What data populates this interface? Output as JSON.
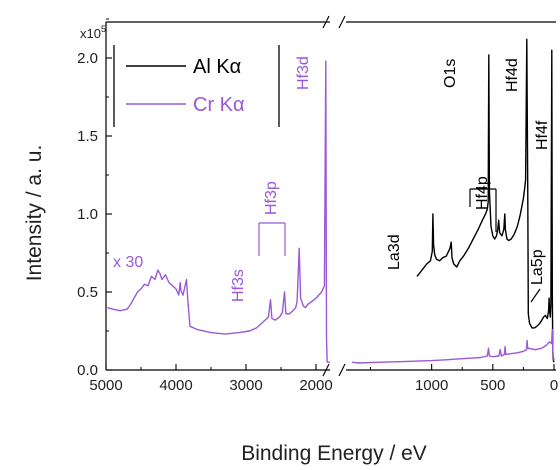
{
  "chart_data": {
    "type": "line",
    "xlabel": "Binding Energy / eV",
    "ylabel": "Intensity / a. u.",
    "y_multiplier": "x10",
    "y_multiplier_exp": "5",
    "ylim": [
      0,
      2.35
    ],
    "y_ticks": [
      {
        "v": 0.0,
        "label": "0.0"
      },
      {
        "v": 0.5,
        "label": "0.5"
      },
      {
        "v": 1.0,
        "label": "1.0"
      },
      {
        "v": 1.5,
        "label": "1.5"
      },
      {
        "v": 2.0,
        "label": "2.0"
      }
    ],
    "x_axis_broken": true,
    "x_segments": [
      {
        "range": [
          5000,
          1800
        ],
        "ticks": [
          {
            "v": 5000,
            "label": "5000"
          },
          {
            "v": 4000,
            "label": "4000"
          },
          {
            "v": 3000,
            "label": "3000"
          },
          {
            "v": 2000,
            "label": "2000"
          }
        ]
      },
      {
        "range": [
          1700,
          0
        ],
        "ticks": [
          {
            "v": 1000,
            "label": "1000"
          },
          {
            "v": 500,
            "label": "500"
          },
          {
            "v": 0,
            "label": "0"
          }
        ]
      }
    ],
    "legend_position": "top-left",
    "series": [
      {
        "name": "Al Kα",
        "color": "#000000",
        "segment": 1,
        "points": [
          [
            1120,
            0.6
          ],
          [
            1080,
            0.64
          ],
          [
            1040,
            0.68
          ],
          [
            1010,
            0.7
          ],
          [
            995,
            0.76
          ],
          [
            990,
            1.0
          ],
          [
            984,
            0.8
          ],
          [
            975,
            0.74
          ],
          [
            960,
            0.71
          ],
          [
            935,
            0.7
          ],
          [
            910,
            0.72
          ],
          [
            880,
            0.73
          ],
          [
            850,
            0.78
          ],
          [
            840,
            0.82
          ],
          [
            834,
            0.72
          ],
          [
            820,
            0.68
          ],
          [
            795,
            0.66
          ],
          [
            770,
            0.7
          ],
          [
            740,
            0.73
          ],
          [
            700,
            0.78
          ],
          [
            660,
            0.84
          ],
          [
            620,
            0.9
          ],
          [
            585,
            0.96
          ],
          [
            560,
            1.0
          ],
          [
            545,
            1.03
          ],
          [
            538,
            1.08
          ],
          [
            533,
            2.02
          ],
          [
            528,
            1.15
          ],
          [
            515,
            0.92
          ],
          [
            500,
            0.86
          ],
          [
            485,
            0.84
          ],
          [
            470,
            0.86
          ],
          [
            460,
            0.9
          ],
          [
            452,
            0.96
          ],
          [
            445,
            0.88
          ],
          [
            425,
            0.86
          ],
          [
            410,
            0.9
          ],
          [
            402,
            1.0
          ],
          [
            397,
            0.9
          ],
          [
            385,
            0.84
          ],
          [
            370,
            0.83
          ],
          [
            350,
            0.84
          ],
          [
            325,
            0.87
          ],
          [
            300,
            0.92
          ],
          [
            280,
            0.98
          ],
          [
            265,
            1.04
          ],
          [
            250,
            1.1
          ],
          [
            240,
            1.16
          ],
          [
            232,
            1.22
          ],
          [
            222,
            2.12
          ],
          [
            214,
            1.1
          ],
          [
            210,
            0.36
          ],
          [
            200,
            0.3
          ],
          [
            180,
            0.27
          ],
          [
            160,
            0.27
          ],
          [
            140,
            0.28
          ],
          [
            115,
            0.3
          ],
          [
            100,
            0.32
          ],
          [
            85,
            0.34
          ],
          [
            70,
            0.35
          ],
          [
            55,
            0.33
          ],
          [
            44,
            0.38
          ],
          [
            40,
            0.46
          ],
          [
            36,
            0.38
          ],
          [
            30,
            0.34
          ],
          [
            25,
            0.42
          ],
          [
            18,
            2.05
          ],
          [
            14,
            0.5
          ],
          [
            10,
            0.12
          ],
          [
            5,
            0.06
          ],
          [
            0,
            0.05
          ]
        ]
      },
      {
        "name": "Cr Kα",
        "color": "#9b59d6",
        "segment": 0,
        "points": [
          [
            4980,
            0.4
          ],
          [
            4900,
            0.39
          ],
          [
            4800,
            0.38
          ],
          [
            4700,
            0.39
          ],
          [
            4650,
            0.42
          ],
          [
            4600,
            0.46
          ],
          [
            4550,
            0.5
          ],
          [
            4500,
            0.52
          ],
          [
            4450,
            0.55
          ],
          [
            4400,
            0.54
          ],
          [
            4350,
            0.6
          ],
          [
            4300,
            0.58
          ],
          [
            4260,
            0.64
          ],
          [
            4230,
            0.62
          ],
          [
            4200,
            0.58
          ],
          [
            4150,
            0.61
          ],
          [
            4100,
            0.56
          ],
          [
            4050,
            0.54
          ],
          [
            4000,
            0.52
          ],
          [
            3960,
            0.48
          ],
          [
            3940,
            0.56
          ],
          [
            3930,
            0.51
          ],
          [
            3900,
            0.48
          ],
          [
            3880,
            0.52
          ],
          [
            3850,
            0.58
          ],
          [
            3830,
            0.44
          ],
          [
            3800,
            0.28
          ],
          [
            3700,
            0.26
          ],
          [
            3500,
            0.24
          ],
          [
            3300,
            0.23
          ],
          [
            3100,
            0.24
          ],
          [
            2950,
            0.25
          ],
          [
            2850,
            0.27
          ],
          [
            2750,
            0.31
          ],
          [
            2680,
            0.34
          ],
          [
            2650,
            0.45
          ],
          [
            2630,
            0.33
          ],
          [
            2580,
            0.32
          ],
          [
            2520,
            0.34
          ],
          [
            2480,
            0.37
          ],
          [
            2450,
            0.5
          ],
          [
            2430,
            0.36
          ],
          [
            2380,
            0.36
          ],
          [
            2330,
            0.38
          ],
          [
            2290,
            0.4
          ],
          [
            2270,
            0.44
          ],
          [
            2240,
            0.78
          ],
          [
            2220,
            0.46
          ],
          [
            2180,
            0.41
          ],
          [
            2150,
            0.4
          ],
          [
            2120,
            0.42
          ],
          [
            2060,
            0.44
          ],
          [
            2000,
            0.46
          ],
          [
            1960,
            0.48
          ],
          [
            1920,
            0.5
          ],
          [
            1880,
            0.54
          ],
          [
            1860,
            1.98
          ],
          [
            1850,
            0.2
          ],
          [
            1840,
            0.05
          ],
          [
            1800,
            0.05
          ]
        ]
      },
      {
        "name": "Cr Kα",
        "color": "#9b59d6",
        "segment": 1,
        "points": [
          [
            1650,
            0.05
          ],
          [
            1600,
            0.045
          ],
          [
            1400,
            0.05
          ],
          [
            1200,
            0.055
          ],
          [
            1000,
            0.06
          ],
          [
            900,
            0.065
          ],
          [
            800,
            0.07
          ],
          [
            700,
            0.075
          ],
          [
            600,
            0.08
          ],
          [
            545,
            0.09
          ],
          [
            535,
            0.14
          ],
          [
            528,
            0.09
          ],
          [
            500,
            0.085
          ],
          [
            450,
            0.09
          ],
          [
            440,
            0.13
          ],
          [
            430,
            0.09
          ],
          [
            405,
            0.1
          ],
          [
            400,
            0.15
          ],
          [
            395,
            0.1
          ],
          [
            300,
            0.11
          ],
          [
            250,
            0.12
          ],
          [
            225,
            0.13
          ],
          [
            220,
            0.19
          ],
          [
            215,
            0.14
          ],
          [
            150,
            0.13
          ],
          [
            100,
            0.14
          ],
          [
            60,
            0.16
          ],
          [
            40,
            0.18
          ],
          [
            20,
            0.17
          ],
          [
            14,
            0.26
          ],
          [
            10,
            0.12
          ],
          [
            0,
            0.06
          ]
        ]
      }
    ],
    "annotations": [
      {
        "text": "x 30",
        "color": "#9b59d6"
      },
      {
        "text": "Hf3s",
        "color": "#9b59d6"
      },
      {
        "text": "Hf3p",
        "color": "#9b59d6"
      },
      {
        "text": "Hf3d",
        "color": "#9b59d6"
      },
      {
        "text": "La3d",
        "color": "#000000"
      },
      {
        "text": "O1s",
        "color": "#000000"
      },
      {
        "text": "Hf4p",
        "color": "#000000"
      },
      {
        "text": "Hf4d",
        "color": "#000000"
      },
      {
        "text": "La5p",
        "color": "#000000"
      },
      {
        "text": "Hf4f",
        "color": "#000000"
      }
    ]
  }
}
